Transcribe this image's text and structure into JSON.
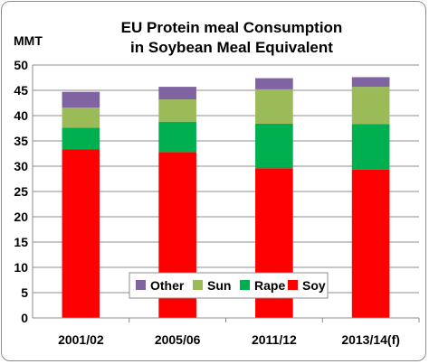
{
  "chart_data": {
    "type": "bar",
    "stacked": true,
    "title_lines": [
      "EU Protein meal Consumption",
      "in Soybean Meal Equivalent"
    ],
    "ylabel": "MMT",
    "xlabel": "",
    "ylim": [
      0,
      50
    ],
    "yticks": [
      0,
      5,
      10,
      15,
      20,
      25,
      30,
      35,
      40,
      45,
      50
    ],
    "grid": "horizontal",
    "categories": [
      "2001/02",
      "2005/06",
      "2011/12",
      "2013/14(f)"
    ],
    "series": [
      {
        "name": "Soy",
        "color": "#ff0000",
        "values": [
          33.3,
          32.8,
          29.6,
          29.3
        ]
      },
      {
        "name": "Rape",
        "color": "#00b050",
        "values": [
          4.3,
          6.0,
          8.8,
          9.0
        ]
      },
      {
        "name": "Sun",
        "color": "#9bbb59",
        "values": [
          4.0,
          4.4,
          6.8,
          7.4
        ]
      },
      {
        "name": "Other",
        "color": "#8064a2",
        "values": [
          3.1,
          2.5,
          2.2,
          1.9
        ]
      }
    ],
    "legend_order": [
      "Other",
      "Sun",
      "Rape",
      "Soy"
    ],
    "legend_position": "bottom-center"
  }
}
